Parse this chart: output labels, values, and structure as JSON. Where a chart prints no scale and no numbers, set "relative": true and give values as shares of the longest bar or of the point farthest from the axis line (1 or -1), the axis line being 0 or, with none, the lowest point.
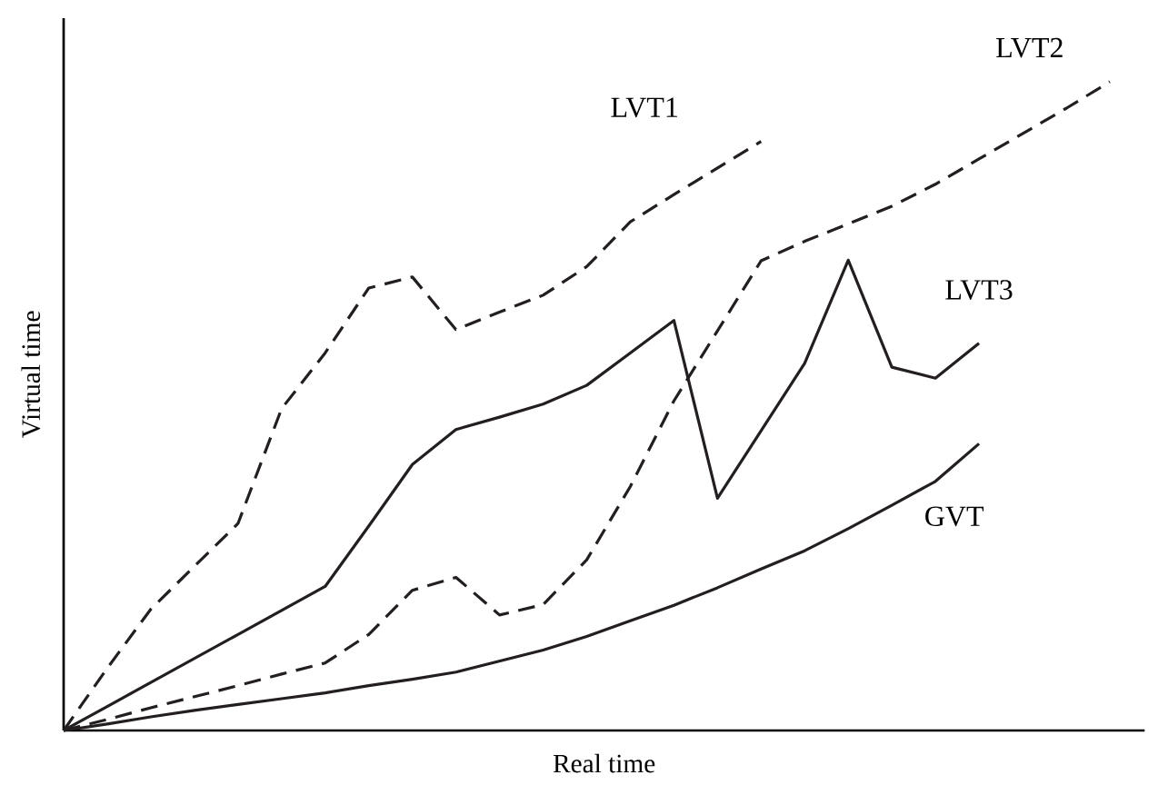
{
  "chart_data": {
    "type": "line",
    "relative": true,
    "xlabel": "Real time",
    "ylabel": "Virtual time",
    "categories": [
      null,
      null,
      null,
      null,
      null,
      null,
      null,
      null,
      null,
      null,
      null,
      null,
      null,
      null,
      null,
      null,
      null,
      null,
      null,
      null,
      null,
      null,
      null,
      null,
      null
    ],
    "series": [
      {
        "name": "LVT1",
        "color": "#231f20",
        "line_style": "dashed",
        "values": [
          0,
          0.096,
          0.187,
          0.253,
          0.319,
          0.496,
          0.582,
          0.682,
          0.699,
          0.618,
          0.645,
          0.671,
          0.715,
          0.784,
          0.826,
          0.867,
          0.908,
          null,
          null,
          null,
          null,
          null,
          null,
          null,
          null
        ]
      },
      {
        "name": "LVT2",
        "color": "#231f20",
        "line_style": "dashed",
        "values": [
          0,
          0.017,
          0.035,
          0.052,
          0.069,
          0.087,
          0.104,
          0.148,
          0.216,
          0.236,
          0.178,
          0.194,
          0.263,
          0.376,
          0.508,
          0.616,
          0.724,
          0.754,
          0.781,
          0.808,
          0.842,
          0.881,
          0.92,
          0.959,
          1
        ]
      },
      {
        "name": "LVT3",
        "color": "#231f20",
        "line_style": "solid",
        "values": [
          0,
          0.037,
          0.074,
          0.111,
          0.148,
          0.185,
          0.222,
          0.315,
          0.41,
          0.464,
          0.483,
          0.503,
          0.532,
          0.582,
          0.632,
          0.358,
          0.462,
          0.566,
          0.725,
          0.56,
          0.543,
          0.597,
          null,
          null,
          null
        ]
      },
      {
        "name": "GVT",
        "color": "#231f20",
        "line_style": "solid",
        "values": [
          0,
          0.01,
          0.021,
          0.031,
          0.04,
          0.049,
          0.058,
          0.069,
          0.079,
          0.09,
          0.107,
          0.124,
          0.145,
          0.169,
          0.193,
          0.22,
          0.249,
          0.277,
          0.311,
          0.347,
          0.384,
          0.442,
          null,
          null,
          null
        ]
      }
    ]
  }
}
